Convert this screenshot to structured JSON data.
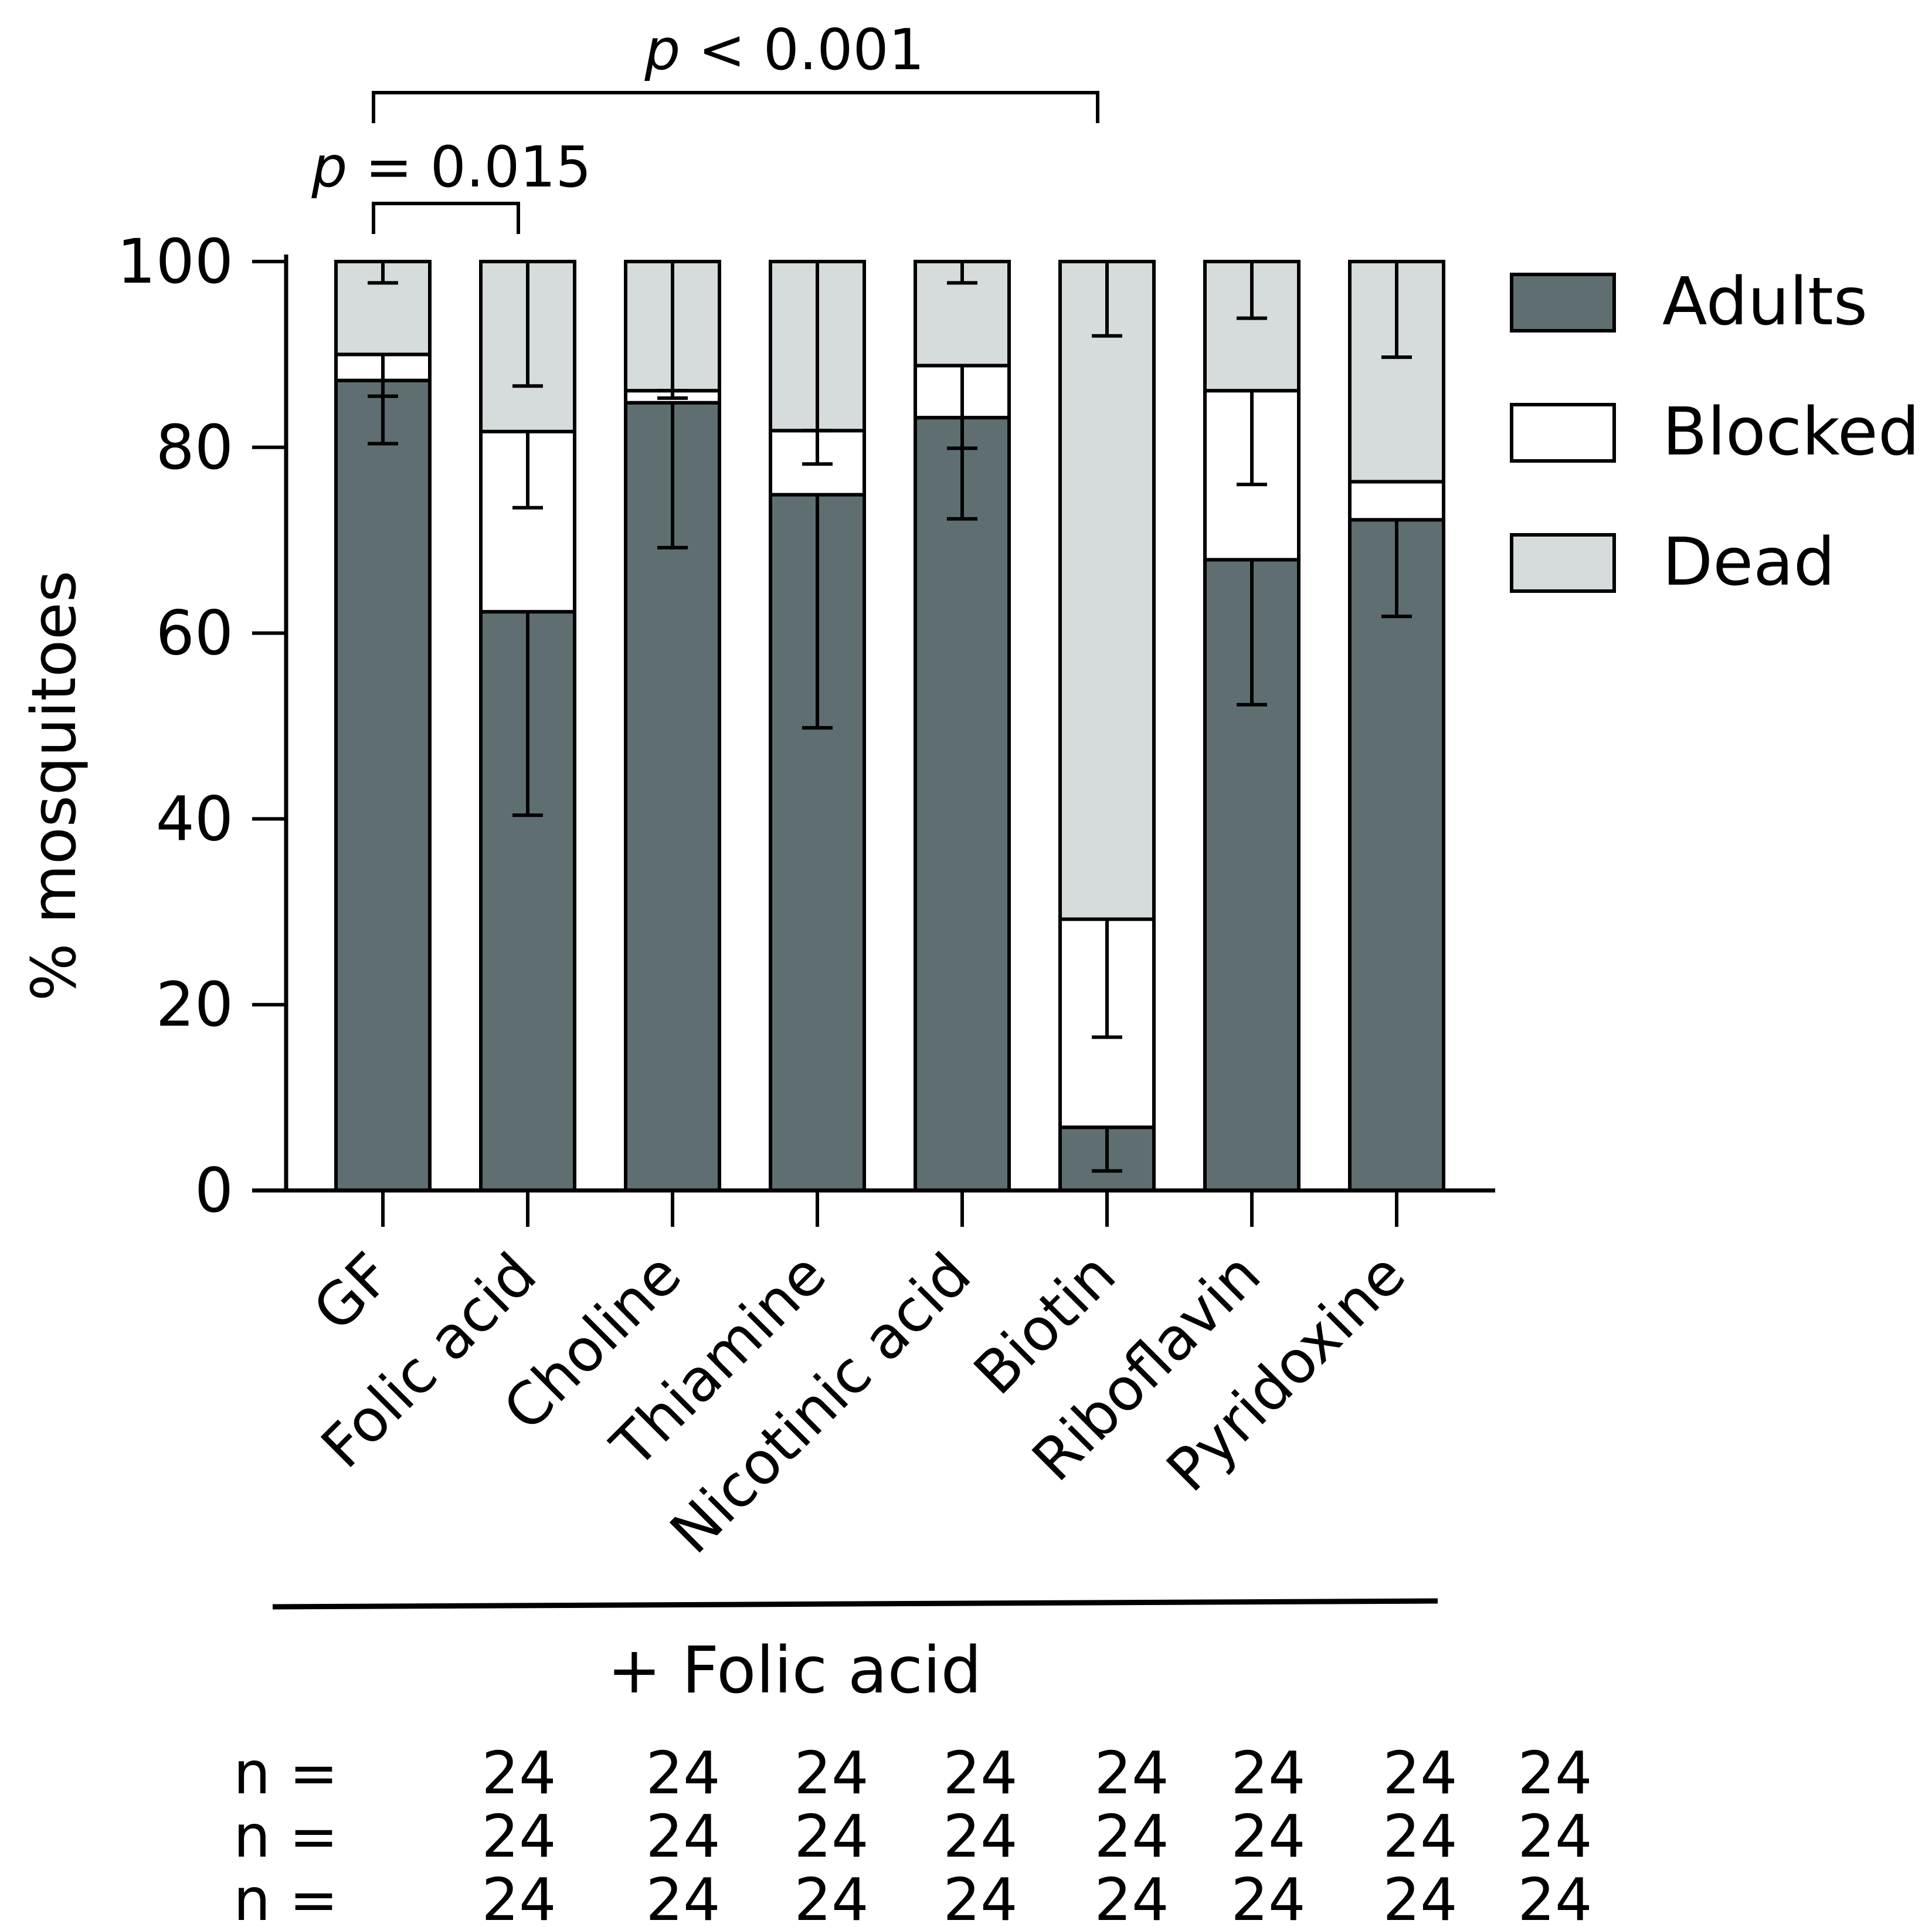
{
  "colors": {
    "adults": "#5f6f71",
    "blocked": "#ffffff",
    "dead": "#d6dcdc",
    "stroke": "#000000"
  },
  "chart_data": {
    "type": "bar",
    "stacked": true,
    "categories": [
      "GF",
      "Folic acid",
      "Choline",
      "Thiamine",
      "Nicotinic acid",
      "Biotin",
      "Riboflavin",
      "Pyridoxine"
    ],
    "series": [
      {
        "name": "Adults",
        "values": [
          87.2,
          62.3,
          84.8,
          74.9,
          83.2,
          6.8,
          67.9,
          72.2
        ],
        "error": [
          6.8,
          21.9,
          15.6,
          25.1,
          10.9,
          4.7,
          15.6,
          10.4
        ]
      },
      {
        "name": "Blocked",
        "values": [
          2.8,
          19.4,
          1.3,
          6.9,
          5.6,
          22.4,
          18.2,
          4.1
        ],
        "error": [
          4.5,
          8.2,
          0.8,
          3.6,
          8.9,
          12.7,
          10.1,
          0
        ]
      },
      {
        "name": "Dead",
        "values": [
          10.0,
          18.3,
          13.9,
          18.2,
          11.2,
          70.8,
          13.9,
          23.7
        ],
        "error": [
          2.3,
          13.4,
          13.9,
          18.2,
          2.3,
          8.0,
          6.1,
          10.3
        ]
      }
    ],
    "xlabel": "",
    "ylabel": "% mosquitoes",
    "ylim": [
      0,
      100
    ],
    "yticks": [
      "0",
      "20",
      "40",
      "60",
      "80",
      "100"
    ],
    "legend": {
      "position": "top-right",
      "entries": [
        "Adults",
        "Blocked",
        "Dead"
      ]
    },
    "annotations": {
      "bracket_gf_folic": {
        "label_italic": "p",
        "label_rest": " = 0.015",
        "from": "GF",
        "to": "Folic acid"
      },
      "bracket_gf_biotin": {
        "label_italic": "p",
        "label_rest": " < 0.001",
        "from": "GF",
        "to": "Biotin"
      },
      "group_label": "+ Folic acid",
      "group_span": [
        "Folic acid",
        "Pyridoxine"
      ]
    },
    "n_rows": [
      {
        "prefix": "n = ",
        "values": [
          "24",
          "24",
          "24",
          "24",
          "24",
          "24",
          "24",
          "24"
        ]
      },
      {
        "prefix": "n = ",
        "values": [
          "24",
          "24",
          "24",
          "24",
          "24",
          "24",
          "24",
          "24"
        ]
      },
      {
        "prefix": "n = ",
        "values": [
          "24",
          "24",
          "24",
          "24",
          "24",
          "24",
          "24",
          "24"
        ]
      }
    ]
  }
}
